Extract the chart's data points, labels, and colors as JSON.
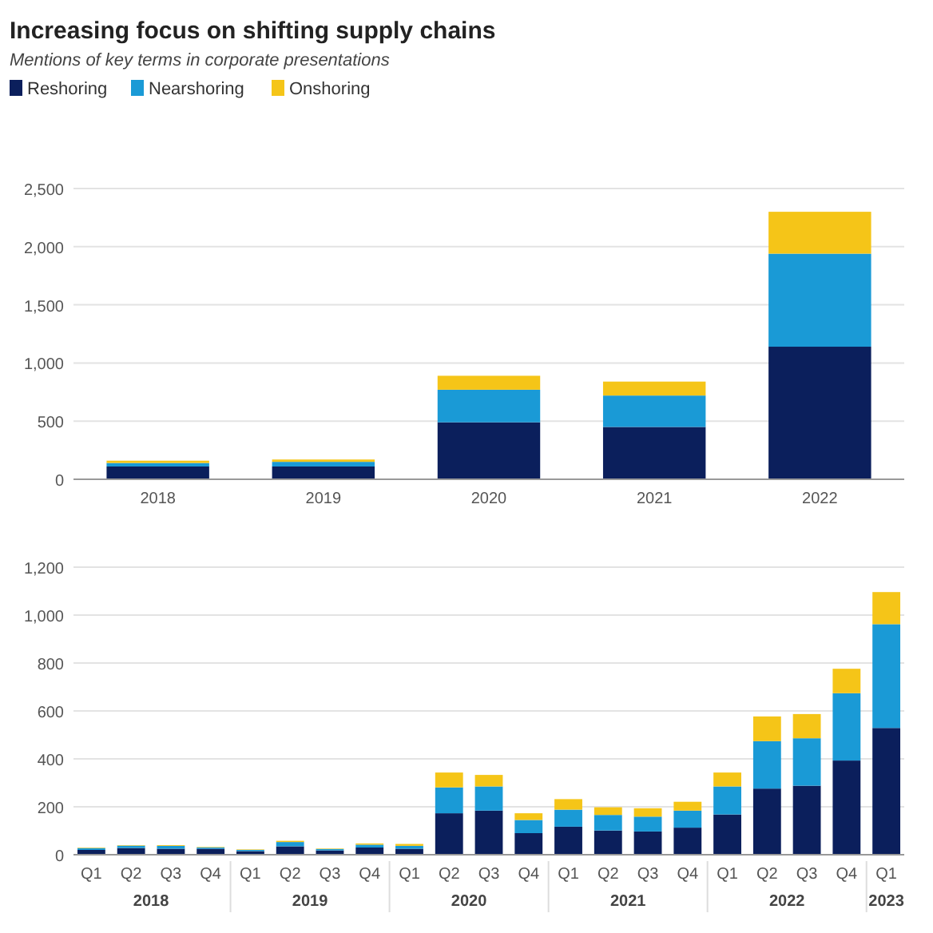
{
  "chart_data": [
    {
      "type": "bar",
      "title": "Increasing focus on shifting supply chains",
      "subtitle": "Mentions of key terms in corporate presentations",
      "stacked": true,
      "legend": "top left",
      "grid": "y",
      "categories": [
        "2018",
        "2019",
        "2020",
        "2021",
        "2022"
      ],
      "ylim": [
        0,
        2500
      ],
      "yticks": [
        0,
        500,
        {
          "value": 1000,
          "label": "1,000"
        },
        {
          "value": 1500,
          "label": "1,500"
        },
        {
          "value": 2000,
          "label": "2,000"
        },
        {
          "value": 2500,
          "label": "2,500"
        }
      ],
      "series": [
        {
          "name": "Reshoring",
          "color": "#0b1f5c",
          "values": [
            110,
            110,
            490,
            450,
            1140
          ]
        },
        {
          "name": "Nearshoring",
          "color": "#1a9ad6",
          "values": [
            30,
            40,
            280,
            270,
            800
          ]
        },
        {
          "name": "Onshoring",
          "color": "#f5c518",
          "values": [
            20,
            20,
            120,
            120,
            360
          ]
        }
      ]
    },
    {
      "type": "bar",
      "stacked": true,
      "grid": "y",
      "categories": [
        "Q1",
        "Q2",
        "Q3",
        "Q4",
        "Q1",
        "Q2",
        "Q3",
        "Q4",
        "Q1",
        "Q2",
        "Q3",
        "Q4",
        "Q1",
        "Q2",
        "Q3",
        "Q4",
        "Q1",
        "Q2",
        "Q3",
        "Q4",
        "Q1"
      ],
      "annotations": [
        "2018",
        "2019",
        "2020",
        "2021",
        "2022",
        "2023"
      ],
      "ylim": [
        0,
        1200
      ],
      "yticks": [
        0,
        200,
        400,
        600,
        800,
        {
          "value": 1000,
          "label": "1,000"
        },
        {
          "value": 1200,
          "label": "1,200"
        }
      ],
      "series": [
        {
          "color": "#0b1f5c",
          "values": [
            20,
            28,
            25,
            25,
            15,
            35,
            18,
            30,
            25,
            173,
            184,
            90,
            117,
            101,
            97,
            113,
            168,
            276,
            288,
            393,
            529
          ]
        },
        {
          "color": "#1a9ad6",
          "values": [
            8,
            10,
            12,
            5,
            5,
            18,
            6,
            12,
            12,
            108,
            101,
            55,
            71,
            65,
            62,
            71,
            117,
            198,
            198,
            281,
            433
          ]
        },
        {
          "color": "#f5c518",
          "values": [
            2,
            2,
            3,
            2,
            2,
            5,
            2,
            5,
            8,
            62,
            48,
            28,
            44,
            32,
            35,
            37,
            58,
            103,
            101,
            102,
            134
          ]
        }
      ]
    }
  ]
}
